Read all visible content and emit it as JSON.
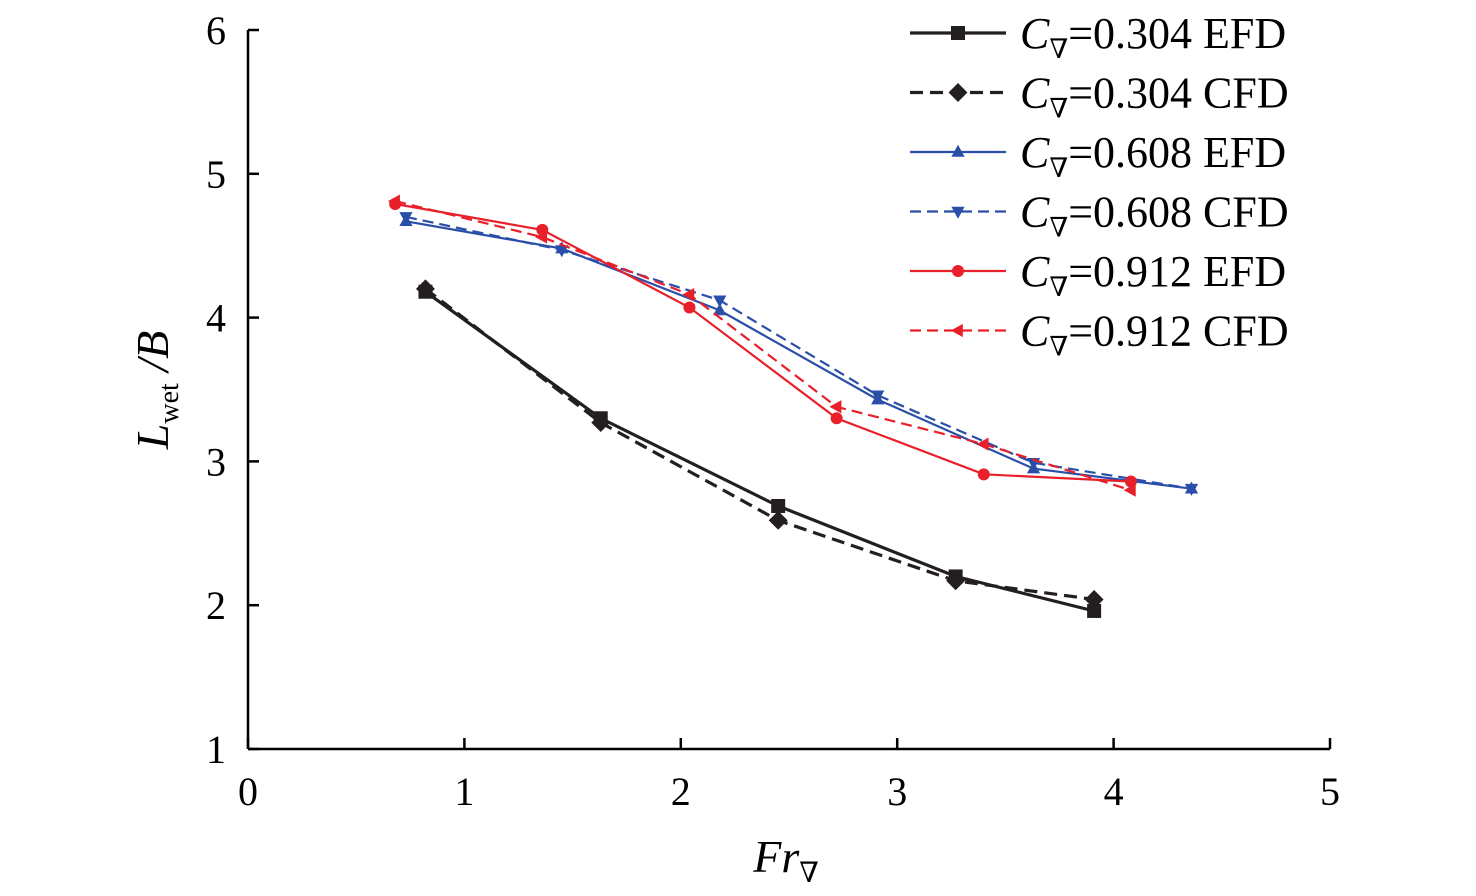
{
  "chart_data": {
    "type": "line",
    "title": "",
    "xlabel": {
      "main": "Fr",
      "sub": "∇"
    },
    "ylabel": {
      "main": "L",
      "sub": "wet",
      "rest": " /B"
    },
    "xlim": [
      0,
      5
    ],
    "ylim": [
      1,
      6
    ],
    "x_ticks": [
      0,
      1,
      2,
      3,
      4,
      5
    ],
    "y_ticks": [
      1,
      2,
      3,
      4,
      5,
      6
    ],
    "grid": false,
    "legend_position": "top-right",
    "series": [
      {
        "name": "=0.304 EFD",
        "symbol": "C",
        "sub": "∇",
        "color": "#231f20",
        "dash": "solid",
        "marker": "square",
        "points": [
          [
            0.82,
            4.18
          ],
          [
            1.63,
            3.3
          ],
          [
            2.45,
            2.69
          ],
          [
            3.27,
            2.2
          ],
          [
            3.91,
            1.96
          ]
        ]
      },
      {
        "name": "=0.304 CFD",
        "symbol": "C",
        "sub": "∇",
        "color": "#231f20",
        "dash": "dashed",
        "marker": "diamond",
        "points": [
          [
            0.82,
            4.2
          ],
          [
            1.63,
            3.27
          ],
          [
            2.45,
            2.59
          ],
          [
            3.27,
            2.17
          ],
          [
            3.91,
            2.04
          ]
        ]
      },
      {
        "name": "=0.608 EFD",
        "symbol": "C",
        "sub": "∇",
        "color": "#2a4fa8",
        "dash": "solid",
        "marker": "triangle-up",
        "points": [
          [
            0.73,
            4.67
          ],
          [
            1.45,
            4.48
          ],
          [
            2.18,
            4.05
          ],
          [
            2.91,
            3.43
          ],
          [
            3.63,
            2.95
          ],
          [
            4.36,
            2.81
          ]
        ]
      },
      {
        "name": "=0.608 CFD",
        "symbol": "C",
        "sub": "∇",
        "color": "#2a4fa8",
        "dash": "dashed",
        "marker": "triangle-down",
        "points": [
          [
            0.73,
            4.7
          ],
          [
            1.45,
            4.47
          ],
          [
            2.18,
            4.12
          ],
          [
            2.91,
            3.46
          ],
          [
            3.63,
            2.99
          ],
          [
            4.36,
            2.81
          ]
        ]
      },
      {
        "name": "=0.912 EFD",
        "symbol": "C",
        "sub": "∇",
        "color": "#e8202a",
        "dash": "solid",
        "marker": "circle",
        "points": [
          [
            0.68,
            4.79
          ],
          [
            1.36,
            4.61
          ],
          [
            2.04,
            4.07
          ],
          [
            2.72,
            3.3
          ],
          [
            3.4,
            2.91
          ],
          [
            4.08,
            2.86
          ]
        ]
      },
      {
        "name": "=0.912 CFD",
        "symbol": "C",
        "sub": "∇",
        "color": "#e8202a",
        "dash": "dashed",
        "marker": "triangle-left",
        "points": [
          [
            0.68,
            4.81
          ],
          [
            1.36,
            4.56
          ],
          [
            2.04,
            4.16
          ],
          [
            2.72,
            3.38
          ],
          [
            3.4,
            3.12
          ],
          [
            4.08,
            2.8
          ]
        ]
      }
    ]
  }
}
